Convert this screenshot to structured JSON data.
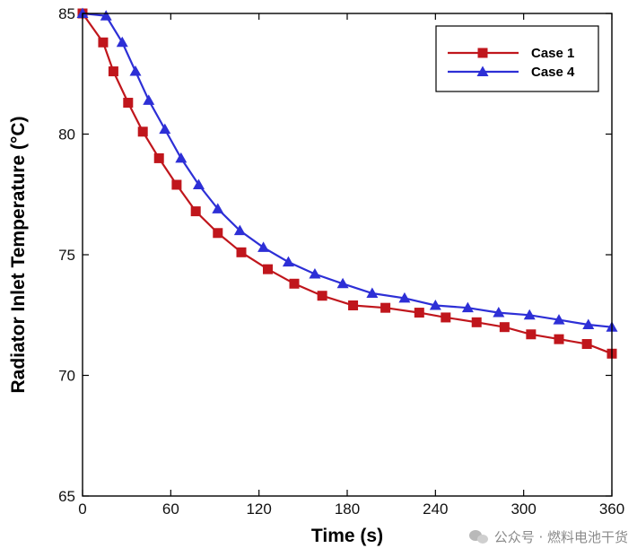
{
  "chart_data": {
    "type": "line",
    "title": "",
    "xlabel": "Time (s)",
    "ylabel": "Radiator Inlet Temperature (°C)",
    "xlim": [
      0,
      360
    ],
    "ylim": [
      65,
      85
    ],
    "xticks": [
      0,
      60,
      120,
      180,
      240,
      300,
      360
    ],
    "yticks": [
      65,
      70,
      75,
      80,
      85
    ],
    "grid": false,
    "legend_position": "top-right",
    "series": [
      {
        "name": "Case 1",
        "color": "#c0161c",
        "marker": "square",
        "x": [
          0,
          14,
          21,
          31,
          41,
          52,
          64,
          77,
          92,
          108,
          126,
          144,
          163,
          184,
          206,
          229,
          247,
          268,
          287,
          305,
          324,
          343,
          360
        ],
        "y": [
          85.0,
          83.8,
          82.6,
          81.3,
          80.1,
          79.0,
          77.9,
          76.8,
          75.9,
          75.1,
          74.4,
          73.8,
          73.3,
          72.9,
          72.8,
          72.6,
          72.4,
          72.2,
          72.0,
          71.7,
          71.5,
          71.3,
          70.9
        ]
      },
      {
        "name": "Case 4",
        "color": "#2d2fd6",
        "marker": "triangle",
        "x": [
          0,
          16,
          27,
          36,
          45,
          56,
          67,
          79,
          92,
          107,
          123,
          140,
          158,
          177,
          197,
          219,
          240,
          262,
          283,
          304,
          324,
          344,
          360
        ],
        "y": [
          85.0,
          84.9,
          83.8,
          82.6,
          81.4,
          80.2,
          79.0,
          77.9,
          76.9,
          76.0,
          75.3,
          74.7,
          74.2,
          73.8,
          73.4,
          73.2,
          72.9,
          72.8,
          72.6,
          72.5,
          72.3,
          72.1,
          72.0
        ]
      }
    ]
  },
  "watermark": {
    "text": "公众号 · 燃料电池干货",
    "icon": "wechat-icon"
  }
}
